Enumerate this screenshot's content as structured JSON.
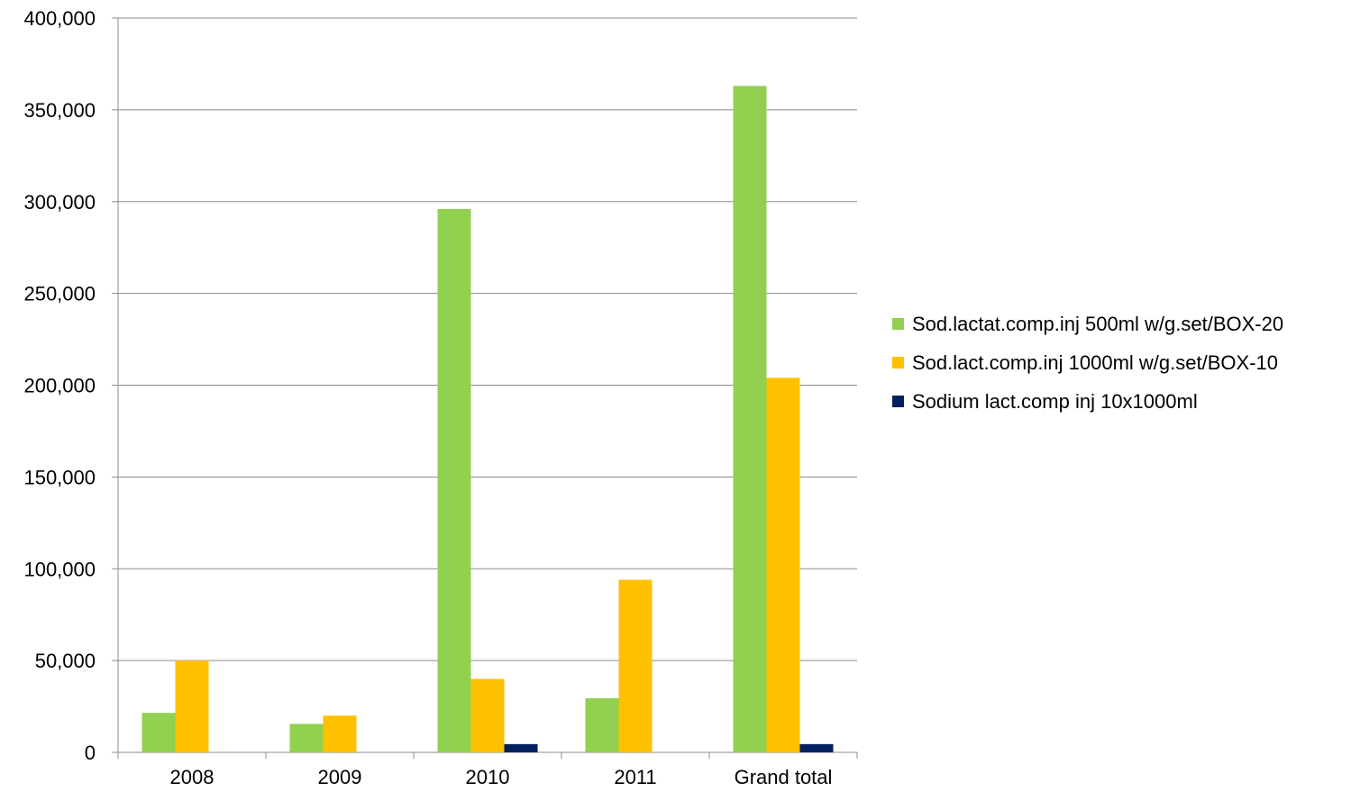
{
  "chart_data": {
    "type": "bar",
    "categories": [
      "2008",
      "2009",
      "2010",
      "2011",
      "Grand total"
    ],
    "series": [
      {
        "name": "Sod.lactat.comp.inj 500ml w/g.set/BOX-20",
        "color": "#92d050",
        "values": [
          21500,
          15500,
          296000,
          29500,
          363000
        ]
      },
      {
        "name": "Sod.lact.comp.inj 1000ml w/g.set/BOX-10",
        "color": "#ffc000",
        "values": [
          50000,
          20000,
          40000,
          94000,
          204000
        ]
      },
      {
        "name": "Sodium lact.comp inj 10x1000ml",
        "color": "#002060",
        "values": [
          0,
          0,
          4500,
          0,
          4500
        ]
      }
    ],
    "ylim": [
      0,
      400000
    ],
    "y_ticks": [
      0,
      50000,
      100000,
      150000,
      200000,
      250000,
      300000,
      350000,
      400000
    ],
    "y_tick_labels": [
      "0",
      "50,000",
      "100,000",
      "150,000",
      "200,000",
      "250,000",
      "300,000",
      "350,000",
      "400,000"
    ],
    "grid": true,
    "legend_position": "right"
  }
}
